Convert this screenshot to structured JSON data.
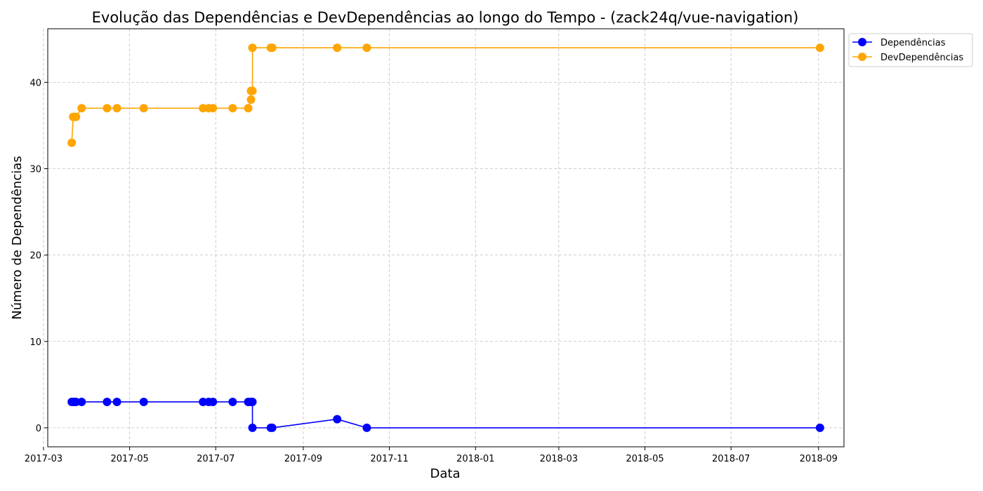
{
  "chart_data": {
    "type": "line",
    "title": "Evolução das Dependências e DevDependências ao longo do Tempo - (zack24q/vue-navigation)",
    "xlabel": "Data",
    "ylabel": "Número de Dependências",
    "x_ticks": [
      "2017-03",
      "2017-05",
      "2017-07",
      "2017-09",
      "2017-11",
      "2018-01",
      "2018-03",
      "2018-05",
      "2018-07",
      "2018-09"
    ],
    "y_ticks": [
      0,
      10,
      20,
      30,
      40
    ],
    "xlim": [
      "2017-03-04",
      "2018-09-19"
    ],
    "ylim": [
      -2.2,
      46.2
    ],
    "grid": true,
    "legend_position": "outside-top-right",
    "series": [
      {
        "name": "Dependências",
        "color": "#0000ff",
        "points": [
          {
            "x": "2017-03-21",
            "y": 3
          },
          {
            "x": "2017-03-22",
            "y": 3
          },
          {
            "x": "2017-03-23",
            "y": 3
          },
          {
            "x": "2017-03-24",
            "y": 3
          },
          {
            "x": "2017-03-28",
            "y": 3
          },
          {
            "x": "2017-04-15",
            "y": 3
          },
          {
            "x": "2017-04-22",
            "y": 3
          },
          {
            "x": "2017-05-11",
            "y": 3
          },
          {
            "x": "2017-06-22",
            "y": 3
          },
          {
            "x": "2017-06-26",
            "y": 3
          },
          {
            "x": "2017-06-29",
            "y": 3
          },
          {
            "x": "2017-07-13",
            "y": 3
          },
          {
            "x": "2017-07-24",
            "y": 3
          },
          {
            "x": "2017-07-26",
            "y": 3
          },
          {
            "x": "2017-07-27",
            "y": 3
          },
          {
            "x": "2017-07-27",
            "y": 0
          },
          {
            "x": "2017-08-09",
            "y": 0
          },
          {
            "x": "2017-08-10",
            "y": 0
          },
          {
            "x": "2017-09-25",
            "y": 1
          },
          {
            "x": "2017-10-16",
            "y": 0
          },
          {
            "x": "2018-09-02",
            "y": 0
          }
        ]
      },
      {
        "name": "DevDependências",
        "color": "#ffa500",
        "points": [
          {
            "x": "2017-03-21",
            "y": 33
          },
          {
            "x": "2017-03-22",
            "y": 36
          },
          {
            "x": "2017-03-23",
            "y": 36
          },
          {
            "x": "2017-03-24",
            "y": 36
          },
          {
            "x": "2017-03-28",
            "y": 37
          },
          {
            "x": "2017-04-15",
            "y": 37
          },
          {
            "x": "2017-04-22",
            "y": 37
          },
          {
            "x": "2017-05-11",
            "y": 37
          },
          {
            "x": "2017-06-22",
            "y": 37
          },
          {
            "x": "2017-06-26",
            "y": 37
          },
          {
            "x": "2017-06-29",
            "y": 37
          },
          {
            "x": "2017-07-13",
            "y": 37
          },
          {
            "x": "2017-07-24",
            "y": 37
          },
          {
            "x": "2017-07-26",
            "y": 38
          },
          {
            "x": "2017-07-26",
            "y": 39
          },
          {
            "x": "2017-07-27",
            "y": 39
          },
          {
            "x": "2017-07-27",
            "y": 44
          },
          {
            "x": "2017-08-09",
            "y": 44
          },
          {
            "x": "2017-08-10",
            "y": 44
          },
          {
            "x": "2017-09-25",
            "y": 44
          },
          {
            "x": "2017-10-16",
            "y": 44
          },
          {
            "x": "2018-09-02",
            "y": 44
          }
        ]
      }
    ]
  }
}
